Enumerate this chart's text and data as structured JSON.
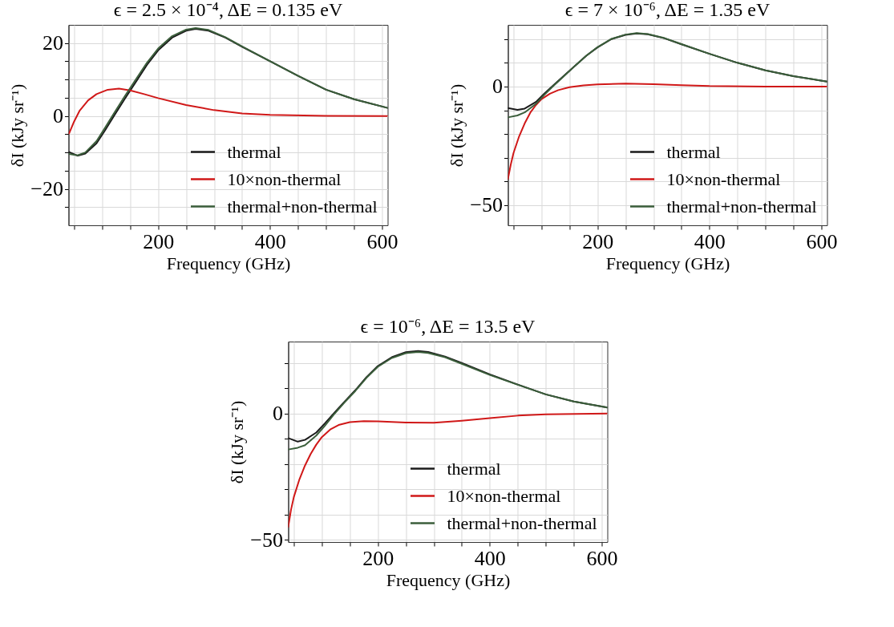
{
  "chart_data": [
    {
      "type": "line",
      "title": "ϵ = 2.5 × 10⁻⁴, ΔE = 0.135 eV",
      "xlabel": "Frequency (GHz)",
      "ylabel": "δI (kJy sr⁻¹)",
      "xlim": [
        40,
        610
      ],
      "ylim": [
        -30,
        25
      ],
      "xticks": [
        {
          "value": 50,
          "label": null
        },
        {
          "value": 100,
          "label": null
        },
        {
          "value": 150,
          "label": null
        },
        200,
        {
          "value": 250,
          "label": null
        },
        {
          "value": 300,
          "label": null
        },
        {
          "value": 350,
          "label": null
        },
        400,
        {
          "value": 450,
          "label": null
        },
        {
          "value": 500,
          "label": null
        },
        {
          "value": 550,
          "label": null
        },
        600
      ],
      "yticks": [
        {
          "value": -25,
          "label": null
        },
        -20,
        {
          "value": -15,
          "label": null
        },
        {
          "value": -10,
          "label": null
        },
        {
          "value": -5,
          "label": null
        },
        0,
        {
          "value": 5,
          "label": null
        },
        {
          "value": 10,
          "label": null
        },
        {
          "value": 15,
          "label": null
        },
        20
      ],
      "grid": true,
      "legend": "bottom right",
      "line_style": "solid",
      "series": [
        {
          "name": "thermal",
          "color": "#1a1a1a",
          "x": [
            41,
            56,
            70,
            90,
            105,
            121,
            140,
            160,
            180,
            200,
            225,
            250,
            267,
            290,
            320,
            350,
            400,
            450,
            500,
            550,
            610
          ],
          "values": [
            -9.9,
            -10.9,
            -10.3,
            -7.5,
            -4,
            0,
            4.6,
            9.3,
            14,
            18,
            21.5,
            23.4,
            23.9,
            23.4,
            21.5,
            19,
            15,
            11,
            7.2,
            4.6,
            2.2
          ]
        },
        {
          "name": "10×non-thermal",
          "color": "#d01818",
          "x": [
            41,
            50,
            60,
            75,
            90,
            110,
            130,
            150,
            175,
            200,
            250,
            300,
            350,
            400,
            500,
            610
          ],
          "values": [
            -4.8,
            -1.5,
            1.5,
            4.3,
            6,
            7.2,
            7.5,
            7,
            6,
            4.9,
            3,
            1.6,
            0.7,
            0.3,
            0.05,
            0
          ]
        },
        {
          "name": "thermal+non-thermal",
          "color": "#3b5e3b",
          "x": [
            41,
            56,
            70,
            90,
            105,
            121,
            140,
            160,
            180,
            200,
            225,
            250,
            267,
            290,
            320,
            350,
            400,
            450,
            500,
            550,
            610
          ],
          "values": [
            -10.4,
            -10.8,
            -10,
            -6.9,
            -3.3,
            0.7,
            5.3,
            10,
            14.6,
            18.5,
            21.9,
            23.7,
            24.1,
            23.6,
            21.6,
            19.1,
            15,
            11,
            7.2,
            4.6,
            2.2
          ]
        }
      ]
    },
    {
      "type": "line",
      "title": "ϵ = 7 × 10⁻⁶, ΔE = 1.35 eV",
      "xlabel": "Frequency (GHz)",
      "ylabel": "δI (kJy sr⁻¹)",
      "xlim": [
        40,
        610
      ],
      "ylim": [
        -58.5,
        26
      ],
      "xticks": [
        {
          "value": 50,
          "label": null
        },
        {
          "value": 100,
          "label": null
        },
        {
          "value": 150,
          "label": null
        },
        200,
        {
          "value": 250,
          "label": null
        },
        {
          "value": 300,
          "label": null
        },
        {
          "value": 350,
          "label": null
        },
        400,
        {
          "value": 450,
          "label": null
        },
        {
          "value": 500,
          "label": null
        },
        {
          "value": 550,
          "label": null
        },
        600
      ],
      "yticks": [
        -50,
        {
          "value": -40,
          "label": null
        },
        {
          "value": -30,
          "label": null
        },
        {
          "value": -20,
          "label": null
        },
        {
          "value": -10,
          "label": null
        },
        0,
        {
          "value": 10,
          "label": null
        },
        {
          "value": 20,
          "label": null
        }
      ],
      "grid": true,
      "legend": "bottom right",
      "line_style": "solid",
      "series": [
        {
          "name": "thermal",
          "color": "#1a1a1a",
          "x": [
            40,
            57,
            70,
            90,
            105,
            121,
            140,
            160,
            180,
            200,
            225,
            250,
            270,
            290,
            320,
            350,
            400,
            450,
            500,
            550,
            610
          ],
          "values": [
            -9.1,
            -9.8,
            -9.3,
            -6.5,
            -3,
            0.5,
            4.5,
            8.8,
            13,
            16.5,
            20,
            21.8,
            22.4,
            22,
            20.3,
            17.8,
            13.8,
            10,
            6.8,
            4.4,
            2.1
          ]
        },
        {
          "name": "10×non-thermal",
          "color": "#d01818",
          "x": [
            40,
            45,
            50,
            60,
            70,
            80,
            90,
            100,
            115,
            130,
            150,
            175,
            200,
            250,
            300,
            350,
            400,
            500,
            610
          ],
          "values": [
            -39,
            -33,
            -28,
            -21,
            -15.5,
            -11,
            -7.8,
            -5.3,
            -3,
            -1.5,
            -0.3,
            0.5,
            0.9,
            1.2,
            1,
            0.6,
            0.2,
            0,
            0
          ]
        },
        {
          "name": "thermal+non-thermal",
          "color": "#3b5e3b",
          "x": [
            40,
            57,
            70,
            90,
            105,
            121,
            140,
            160,
            180,
            200,
            225,
            250,
            270,
            290,
            320,
            350,
            400,
            450,
            500,
            550,
            610
          ],
          "values": [
            -13,
            -12.2,
            -10.9,
            -7.3,
            -3.5,
            0.2,
            4.4,
            8.8,
            13,
            16.6,
            20.1,
            21.9,
            22.5,
            22.1,
            20.4,
            17.9,
            13.8,
            10,
            6.8,
            4.4,
            2.1
          ]
        }
      ]
    },
    {
      "type": "line",
      "title": "ϵ = 10⁻⁶, ΔE = 13.5 eV",
      "xlabel": "Frequency (GHz)",
      "ylabel": "δI (kJy sr⁻¹)",
      "xlim": [
        40,
        610
      ],
      "ylim": [
        -50.8,
        28.5
      ],
      "xticks": [
        {
          "value": 50,
          "label": null
        },
        {
          "value": 100,
          "label": null
        },
        {
          "value": 150,
          "label": null
        },
        200,
        {
          "value": 250,
          "label": null
        },
        {
          "value": 300,
          "label": null
        },
        {
          "value": 350,
          "label": null
        },
        400,
        {
          "value": 450,
          "label": null
        },
        {
          "value": 500,
          "label": null
        },
        {
          "value": 550,
          "label": null
        },
        600
      ],
      "yticks": [
        -50,
        {
          "value": -40,
          "label": null
        },
        {
          "value": -30,
          "label": null
        },
        {
          "value": -20,
          "label": null
        },
        {
          "value": -10,
          "label": null
        },
        0,
        {
          "value": 10,
          "label": null
        },
        {
          "value": 20,
          "label": null
        }
      ],
      "grid": true,
      "legend": "bottom right",
      "line_style": "solid",
      "series": [
        {
          "name": "thermal",
          "color": "#1a1a1a",
          "x": [
            40,
            57,
            70,
            90,
            105,
            121,
            140,
            160,
            180,
            200,
            225,
            250,
            272,
            290,
            320,
            350,
            400,
            450,
            500,
            550,
            610
          ],
          "values": [
            -9.7,
            -11.1,
            -10.4,
            -7.5,
            -4,
            0,
            4.6,
            9.3,
            14.5,
            18.8,
            22.3,
            24.3,
            24.8,
            24.4,
            22.6,
            20,
            15.5,
            11.5,
            7.6,
            4.8,
            2.4
          ]
        },
        {
          "name": "10×non-thermal",
          "color": "#d01818",
          "x": [
            40,
            45,
            50,
            60,
            70,
            80,
            90,
            100,
            115,
            130,
            150,
            175,
            200,
            250,
            300,
            350,
            400,
            450,
            500,
            610
          ],
          "values": [
            -44.8,
            -38,
            -33,
            -26,
            -20.5,
            -16,
            -12.3,
            -9.3,
            -6.3,
            -4.5,
            -3.4,
            -3,
            -3.1,
            -3.5,
            -3.6,
            -2.8,
            -1.8,
            -0.8,
            -0.3,
            0
          ]
        },
        {
          "name": "thermal+non-thermal",
          "color": "#3b5e3b",
          "x": [
            40,
            57,
            70,
            90,
            105,
            121,
            140,
            160,
            180,
            200,
            225,
            250,
            272,
            290,
            320,
            350,
            400,
            450,
            500,
            550,
            610
          ],
          "values": [
            -14.2,
            -13.5,
            -12.5,
            -8.7,
            -4.9,
            -0.5,
            4.3,
            9,
            14.2,
            18.5,
            22,
            23.9,
            24.4,
            24,
            22.3,
            19.7,
            15.3,
            11.4,
            7.6,
            4.8,
            2.4
          ]
        }
      ]
    }
  ]
}
